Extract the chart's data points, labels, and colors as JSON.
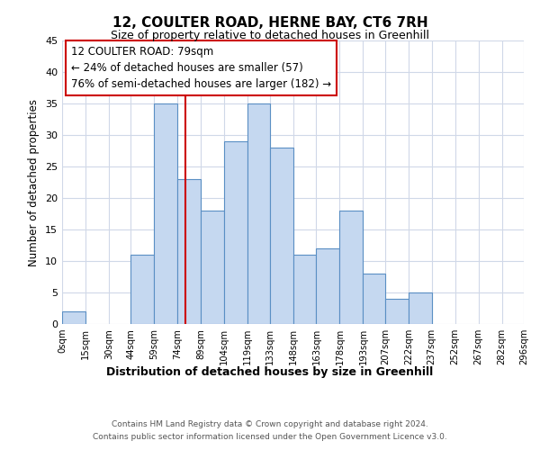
{
  "title": "12, COULTER ROAD, HERNE BAY, CT6 7RH",
  "subtitle": "Size of property relative to detached houses in Greenhill",
  "xlabel": "Distribution of detached houses by size in Greenhill",
  "ylabel": "Number of detached properties",
  "bin_edges": [
    0,
    15,
    30,
    44,
    59,
    74,
    89,
    104,
    119,
    133,
    148,
    163,
    178,
    193,
    207,
    222,
    237,
    252,
    267,
    282,
    296
  ],
  "bin_labels": [
    "0sqm",
    "15sqm",
    "30sqm",
    "44sqm",
    "59sqm",
    "74sqm",
    "89sqm",
    "104sqm",
    "119sqm",
    "133sqm",
    "148sqm",
    "163sqm",
    "178sqm",
    "193sqm",
    "207sqm",
    "222sqm",
    "237sqm",
    "252sqm",
    "267sqm",
    "282sqm",
    "296sqm"
  ],
  "counts": [
    2,
    0,
    0,
    11,
    35,
    23,
    18,
    29,
    35,
    28,
    11,
    12,
    18,
    8,
    4,
    5,
    0,
    0,
    0,
    0
  ],
  "bar_color": "#c5d8f0",
  "bar_edge_color": "#5a8fc4",
  "property_line_x": 79,
  "property_line_color": "#cc0000",
  "ylim": [
    0,
    45
  ],
  "yticks": [
    0,
    5,
    10,
    15,
    20,
    25,
    30,
    35,
    40,
    45
  ],
  "annotation_title": "12 COULTER ROAD: 79sqm",
  "annotation_line1": "← 24% of detached houses are smaller (57)",
  "annotation_line2": "76% of semi-detached houses are larger (182) →",
  "footer_line1": "Contains HM Land Registry data © Crown copyright and database right 2024.",
  "footer_line2": "Contains public sector information licensed under the Open Government Licence v3.0.",
  "background_color": "#ffffff",
  "grid_color": "#d0d8e8"
}
